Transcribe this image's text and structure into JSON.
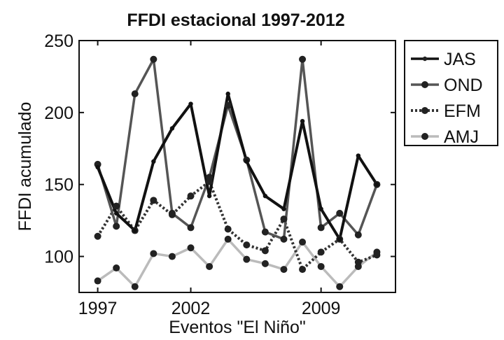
{
  "chart_data": {
    "type": "line",
    "title": "FFDI estacional 1997-2012",
    "xlabel": "Eventos \"El Niño\"",
    "ylabel": "FFDI acumulado",
    "x": [
      1997,
      1998,
      1999,
      2000,
      2001,
      2002,
      2003,
      2004,
      2005,
      2006,
      2007,
      2008,
      2009,
      2010,
      2011,
      2012
    ],
    "xticks": [
      1997,
      2002,
      2009
    ],
    "xlim": [
      1996,
      2013
    ],
    "ylim": [
      75,
      250
    ],
    "yticks": [
      100,
      150,
      200,
      250
    ],
    "legend_position": "outside-right-top",
    "series": [
      {
        "name": "JAS",
        "color": "#111111",
        "style": "solid",
        "marker": "small",
        "values": [
          162,
          130,
          118,
          166,
          189,
          206,
          142,
          213,
          166,
          142,
          133,
          194,
          133,
          112,
          170,
          150
        ]
      },
      {
        "name": "OND",
        "color": "#555555",
        "style": "solid",
        "marker": "large",
        "values": [
          164,
          121,
          213,
          237,
          130,
          120,
          155,
          205,
          167,
          117,
          112,
          237,
          120,
          130,
          115,
          150
        ]
      },
      {
        "name": "EFM",
        "color": "#333333",
        "style": "dotted",
        "marker": "large",
        "values": [
          114,
          135,
          118,
          139,
          129,
          142,
          152,
          119,
          108,
          104,
          126,
          91,
          103,
          112,
          96,
          101
        ]
      },
      {
        "name": "AMJ",
        "color": "#bbbbbb",
        "style": "solid",
        "marker": "large",
        "values": [
          83,
          92,
          79,
          102,
          100,
          106,
          93,
          112,
          98,
          95,
          91,
          110,
          93,
          79,
          93,
          103
        ]
      }
    ]
  }
}
